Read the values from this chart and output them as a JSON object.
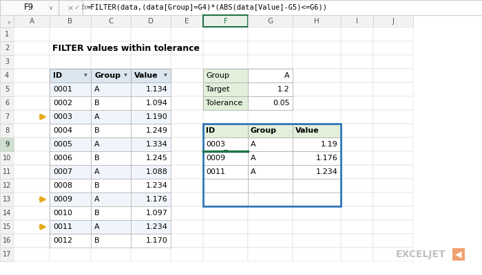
{
  "title": "FILTER values within tolerance",
  "formula_bar_cell": "F9",
  "formula_bar_text": "=FILTER(data,(data[Group]=G4)*(ABS(data[Value]-G5)<=G6))",
  "col_headers": [
    "A",
    "B",
    "C",
    "D",
    "E",
    "F",
    "G",
    "H",
    "I",
    "J"
  ],
  "row_numbers": [
    "1",
    "2",
    "3",
    "4",
    "5",
    "6",
    "7",
    "8",
    "9",
    "10",
    "11",
    "12",
    "13",
    "14",
    "15",
    "16",
    "17"
  ],
  "main_table_headers": [
    "ID",
    "Group",
    "Value"
  ],
  "main_table_data": [
    [
      "0001",
      "A",
      "1.134"
    ],
    [
      "0002",
      "B",
      "1.094"
    ],
    [
      "0003",
      "A",
      "1.190"
    ],
    [
      "0004",
      "B",
      "1.249"
    ],
    [
      "0005",
      "A",
      "1.334"
    ],
    [
      "0006",
      "B",
      "1.245"
    ],
    [
      "0007",
      "A",
      "1.088"
    ],
    [
      "0008",
      "B",
      "1.234"
    ],
    [
      "0009",
      "A",
      "1.176"
    ],
    [
      "0010",
      "B",
      "1.097"
    ],
    [
      "0011",
      "A",
      "1.234"
    ],
    [
      "0012",
      "B",
      "1.170"
    ]
  ],
  "arrow_rows": [
    2,
    8,
    10
  ],
  "params_table": [
    [
      "Group",
      "A"
    ],
    [
      "Target",
      "1.2"
    ],
    [
      "Tolerance",
      "0.05"
    ]
  ],
  "result_table_headers": [
    "ID",
    "Group",
    "Value"
  ],
  "result_table_data": [
    [
      "0003",
      "A",
      "1.19"
    ],
    [
      "0009",
      "A",
      "1.176"
    ],
    [
      "0011",
      "A",
      "1.234"
    ]
  ],
  "bg_color": "#ffffff",
  "header_bg": "#dce6f1",
  "header_bg_green": "#e2efda",
  "row_alt": "#f0f5fb",
  "row_white": "#ffffff",
  "col_header_bg": "#f2f2f2",
  "col_header_selected_bg": "#e8e8e8",
  "selected_col_bg": "#217346",
  "selected_col_text": "#ffffff",
  "grid_color": "#d0d0d0",
  "border_color": "#b0b0b0",
  "arrow_color": "#e6a817",
  "result_border_color": "#2e75b6",
  "exceljet_color": "#c0c0c0",
  "exceljet_logo_color": "#f0a070"
}
